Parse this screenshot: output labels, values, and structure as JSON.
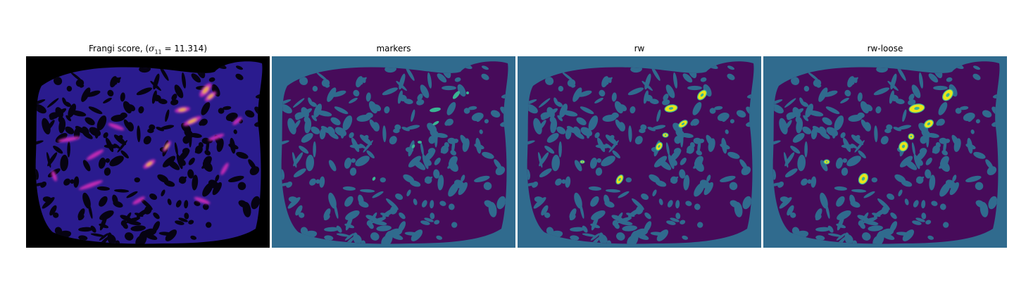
{
  "figure": {
    "panels": [
      {
        "id": "frangi",
        "title_prefix": "Frangi score, (",
        "title_symbol": "σ",
        "title_subscript": "11",
        "title_suffix": " = 11.314)",
        "colormap": "magma",
        "background_color": "#000000",
        "body_color": "#2a1b8e",
        "blob_color": "#060312",
        "highlight_colors": [
          "#c12bb4",
          "#f3b233"
        ]
      },
      {
        "id": "markers",
        "title": "markers",
        "colormap": "viridis",
        "background_color": "#306b8e",
        "body_color": "#470b5a",
        "marker_color": "#3ab593"
      },
      {
        "id": "rw",
        "title": "rw",
        "colormap": "viridis",
        "background_color": "#306b8e",
        "body_color": "#470b5a",
        "segment_color": "#e9e51b",
        "segment_edge_color": "#3ab593"
      },
      {
        "id": "rw-loose",
        "title": "rw-loose",
        "colormap": "viridis",
        "background_color": "#306b8e",
        "body_color": "#470b5a",
        "segment_color": "#e9e51b",
        "segment_edge_color": "#3ab593"
      }
    ]
  }
}
